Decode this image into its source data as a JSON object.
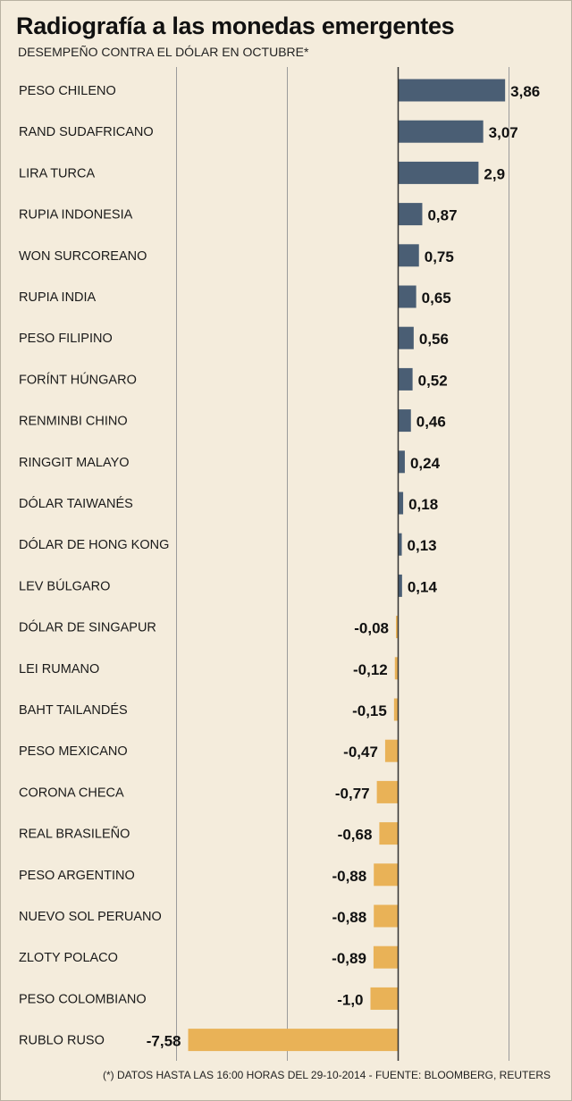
{
  "header": {
    "title": "Radiografía a las monedas emergentes",
    "subtitle": "DESEMPEÑO CONTRA EL DÓLAR EN OCTUBRE*"
  },
  "footer": {
    "note": "(*) DATOS HASTA LAS 16:00 HORAS DEL 29-10-2014 - FUENTE: BLOOMBERG, REUTERS"
  },
  "colors": {
    "positive": "#4a5e74",
    "negative": "#e9b257",
    "background": "#f4ecdc",
    "gridline": "#9b9b9b",
    "zero_line": "#333333"
  },
  "chart_data": {
    "type": "bar",
    "orientation": "horizontal",
    "title": "Radiografía a las monedas emergentes",
    "subtitle": "DESEMPEÑO CONTRA EL DÓLAR EN OCTUBRE*",
    "grid": true,
    "xlim": [
      -8,
      4
    ],
    "gridlines_at": [
      -8,
      -4,
      0,
      4
    ],
    "categories": [
      "PESO CHILENO",
      "RAND SUDAFRICANO",
      "LIRA TURCA",
      "RUPIA INDONESIA",
      "WON SURCOREANO",
      "RUPIA INDIA",
      "PESO FILIPINO",
      "FORÍNT HÚNGARO",
      "RENMINBI CHINO",
      "RINGGIT MALAYO",
      "DÓLAR TAIWANÉS",
      "DÓLAR DE HONG KONG",
      "LEV BÚLGARO",
      "DÓLAR DE SINGAPUR",
      "LEI RUMANO",
      "BAHT TAILANDÉS",
      "PESO MEXICANO",
      "CORONA CHECA",
      "REAL BRASILEÑO",
      "PESO ARGENTINO",
      "NUEVO SOL PERUANO",
      "ZLOTY POLACO",
      "PESO COLOMBIANO",
      "RUBLO RUSO"
    ],
    "values": [
      3.86,
      3.07,
      2.9,
      0.87,
      0.75,
      0.65,
      0.56,
      0.52,
      0.46,
      0.24,
      0.18,
      0.13,
      0.14,
      -0.08,
      -0.12,
      -0.15,
      -0.47,
      -0.77,
      -0.68,
      -0.88,
      -0.88,
      -0.89,
      -1.0,
      -7.58
    ],
    "labels": [
      "3,86",
      "3,07",
      "2,9",
      "0,87",
      "0,75",
      "0,65",
      "0,56",
      "0,52",
      "0,46",
      "0,24",
      "0,18",
      "0,13",
      "0,14",
      "-0,08",
      "-0,12",
      "-0,15",
      "-0,47",
      "-0,77",
      "-0,68",
      "-0,88",
      "-0,88",
      "-0,89",
      "-1,0",
      "-7,58"
    ]
  }
}
